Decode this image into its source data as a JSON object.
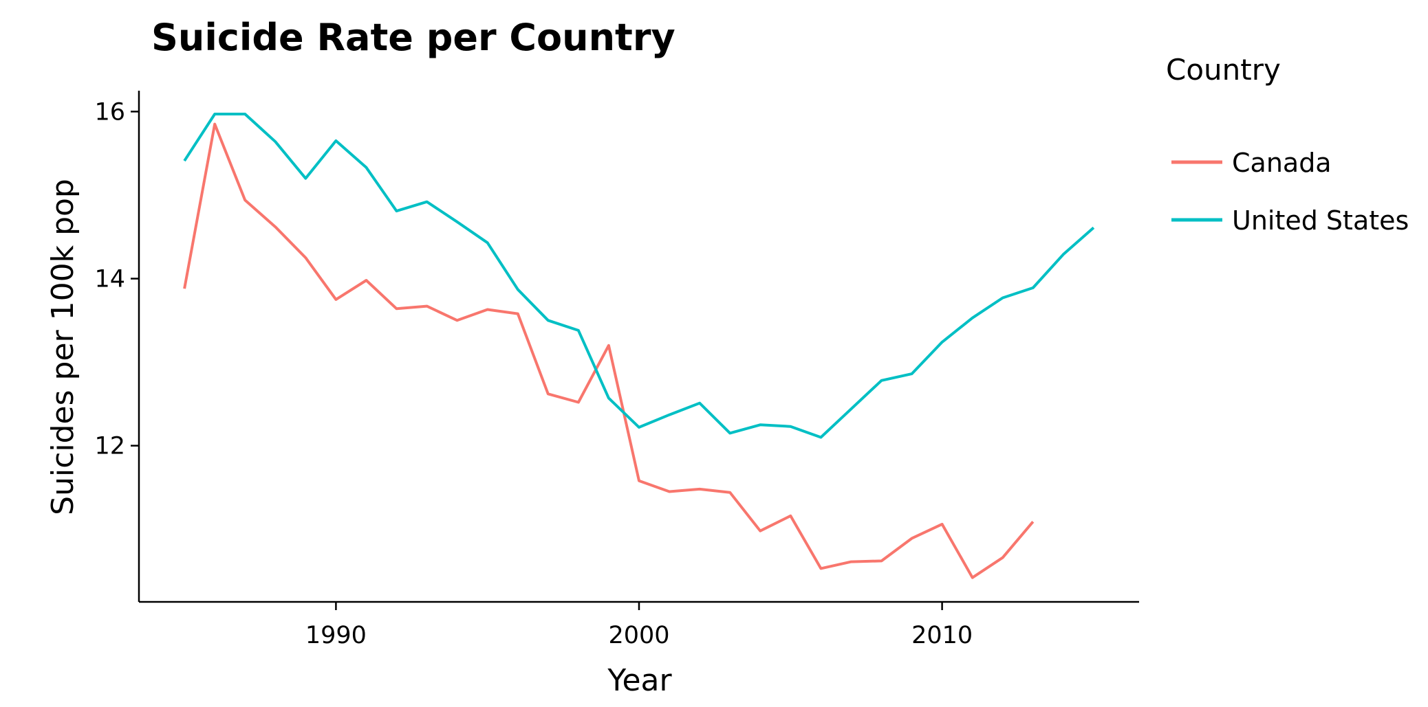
{
  "chart_data": {
    "type": "line",
    "title": "Suicide Rate per Country",
    "xlabel": "Year",
    "ylabel": "Suicides per 100k pop",
    "xlim": [
      1983.5,
      2016.5
    ],
    "ylim": [
      10.13,
      16.25
    ],
    "x_ticks": [
      1990,
      2000,
      2010
    ],
    "y_ticks": [
      12,
      14,
      16
    ],
    "grid": false,
    "legend": {
      "title": "Country",
      "position": "right"
    },
    "series": [
      {
        "name": "Canada",
        "color": "#f8766d",
        "x": [
          1985,
          1986,
          1987,
          1988,
          1989,
          1990,
          1991,
          1992,
          1993,
          1994,
          1995,
          1996,
          1997,
          1998,
          1999,
          2000,
          2001,
          2002,
          2003,
          2004,
          2005,
          2006,
          2007,
          2008,
          2009,
          2010,
          2011,
          2012,
          2013
        ],
        "values": [
          13.88,
          15.85,
          14.94,
          14.62,
          14.25,
          13.75,
          13.98,
          13.64,
          13.67,
          13.5,
          13.63,
          13.58,
          12.62,
          12.52,
          13.2,
          11.58,
          11.45,
          11.48,
          11.44,
          10.98,
          11.16,
          10.53,
          10.61,
          10.62,
          10.89,
          11.06,
          10.42,
          10.66,
          11.09
        ]
      },
      {
        "name": "United States",
        "color": "#00bfc4",
        "x": [
          1985,
          1986,
          1987,
          1988,
          1989,
          1990,
          1991,
          1992,
          1993,
          1994,
          1995,
          1996,
          1997,
          1998,
          1999,
          2000,
          2001,
          2002,
          2003,
          2004,
          2005,
          2006,
          2007,
          2008,
          2009,
          2010,
          2011,
          2012,
          2013,
          2014,
          2015
        ],
        "values": [
          15.41,
          15.97,
          15.97,
          15.64,
          15.2,
          15.65,
          15.33,
          14.81,
          14.92,
          14.68,
          14.43,
          13.87,
          13.5,
          13.38,
          12.57,
          12.22,
          12.37,
          12.51,
          12.15,
          12.25,
          12.23,
          12.1,
          12.44,
          12.78,
          12.86,
          13.24,
          13.53,
          13.77,
          13.89,
          14.29,
          14.61
        ]
      }
    ]
  }
}
